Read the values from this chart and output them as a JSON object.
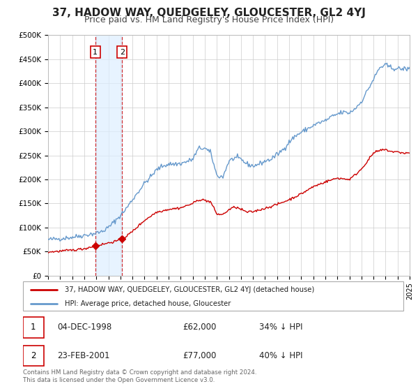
{
  "title": "37, HADOW WAY, QUEDGELEY, GLOUCESTER, GL2 4YJ",
  "subtitle": "Price paid vs. HM Land Registry's House Price Index (HPI)",
  "title_fontsize": 11,
  "subtitle_fontsize": 9,
  "legend_line1": "37, HADOW WAY, QUEDGELEY, GLOUCESTER, GL2 4YJ (detached house)",
  "legend_line2": "HPI: Average price, detached house, Gloucester",
  "red_color": "#cc0000",
  "blue_color": "#6699cc",
  "sale1_date_num": 1998.92,
  "sale1_price": 62000,
  "sale1_label": "1",
  "sale1_info": "04-DEC-1998",
  "sale1_amount": "£62,000",
  "sale1_hpi": "34% ↓ HPI",
  "sale2_date_num": 2001.14,
  "sale2_price": 77000,
  "sale2_label": "2",
  "sale2_info": "23-FEB-2001",
  "sale2_amount": "£77,000",
  "sale2_hpi": "40% ↓ HPI",
  "xmin": 1995,
  "xmax": 2025,
  "ymin": 0,
  "ymax": 500000,
  "yticks": [
    0,
    50000,
    100000,
    150000,
    200000,
    250000,
    300000,
    350000,
    400000,
    450000,
    500000
  ],
  "ytick_labels": [
    "£0",
    "£50K",
    "£100K",
    "£150K",
    "£200K",
    "£250K",
    "£300K",
    "£350K",
    "£400K",
    "£450K",
    "£500K"
  ],
  "footer_line1": "Contains HM Land Registry data © Crown copyright and database right 2024.",
  "footer_line2": "This data is licensed under the Open Government Licence v3.0.",
  "background_color": "#ffffff",
  "plot_bg_color": "#ffffff",
  "grid_color": "#cccccc",
  "shade_color": "#ddeeff",
  "shade_alpha": 0.7
}
